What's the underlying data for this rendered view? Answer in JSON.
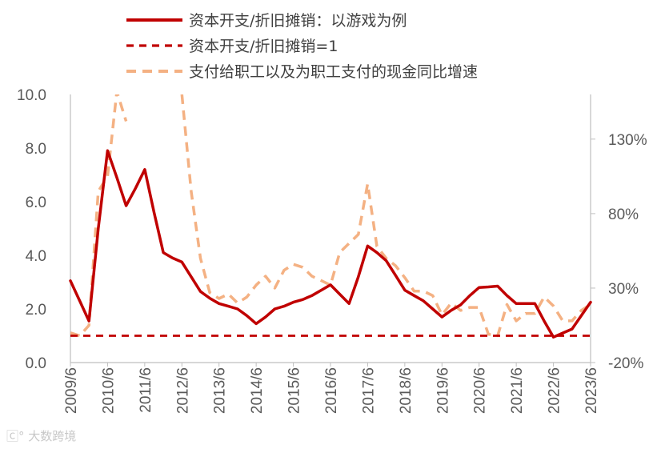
{
  "chart_data": {
    "type": "line",
    "x": [
      "2009/6",
      "2009/9",
      "2009/12",
      "2010/3",
      "2010/6",
      "2010/9",
      "2010/12",
      "2011/3",
      "2011/6",
      "2011/9",
      "2011/12",
      "2012/3",
      "2012/6",
      "2012/9",
      "2012/12",
      "2013/3",
      "2013/6",
      "2013/9",
      "2013/12",
      "2014/3",
      "2014/6",
      "2014/9",
      "2014/12",
      "2015/3",
      "2015/6",
      "2015/9",
      "2015/12",
      "2016/3",
      "2016/6",
      "2016/9",
      "2016/12",
      "2017/3",
      "2017/6",
      "2017/9",
      "2017/12",
      "2018/3",
      "2018/6",
      "2018/9",
      "2018/12",
      "2019/3",
      "2019/6",
      "2019/9",
      "2019/12",
      "2020/3",
      "2020/6",
      "2020/9",
      "2020/12",
      "2021/3",
      "2021/6",
      "2021/9",
      "2021/12",
      "2022/3",
      "2022/6",
      "2022/9",
      "2022/12",
      "2023/3",
      "2023/6"
    ],
    "x_tick_labels": [
      "2009/6",
      "2010/6",
      "2011/6",
      "2012/6",
      "2013/6",
      "2014/6",
      "2015/6",
      "2016/6",
      "2017/6",
      "2018/6",
      "2019/6",
      "2020/6",
      "2021/6",
      "2022/6",
      "2023/6"
    ],
    "series": [
      {
        "name": "资本开支/折旧摊销：以游戏为例",
        "axis": "left",
        "style": "solid",
        "color": "#c00000",
        "values": [
          3.05,
          2.3,
          1.55,
          5.0,
          7.9,
          6.9,
          5.85,
          6.5,
          7.2,
          5.6,
          4.1,
          3.9,
          3.75,
          3.2,
          2.65,
          2.4,
          2.2,
          2.1,
          2.0,
          1.75,
          1.45,
          1.7,
          2.0,
          2.1,
          2.25,
          2.35,
          2.5,
          2.7,
          2.9,
          2.55,
          2.2,
          3.2,
          4.35,
          4.1,
          3.8,
          3.25,
          2.7,
          2.5,
          2.3,
          2.0,
          1.7,
          1.95,
          2.15,
          2.5,
          2.8,
          2.82,
          2.85,
          2.5,
          2.2,
          2.2,
          2.2,
          1.55,
          0.95,
          1.1,
          1.25,
          1.75,
          2.25
        ]
      },
      {
        "name": "资本开支/折旧摊销=1",
        "axis": "left",
        "style": "dashed",
        "color": "#c00000",
        "values": [
          1,
          1,
          1,
          1,
          1,
          1,
          1,
          1,
          1,
          1,
          1,
          1,
          1,
          1,
          1,
          1,
          1,
          1,
          1,
          1,
          1,
          1,
          1,
          1,
          1,
          1,
          1,
          1,
          1,
          1,
          1,
          1,
          1,
          1,
          1,
          1,
          1,
          1,
          1,
          1,
          1,
          1,
          1,
          1,
          1,
          1,
          1,
          1,
          1,
          1,
          1,
          1,
          1,
          1,
          1,
          1,
          1
        ]
      },
      {
        "name": "支付给职工以及为职工支付的现金同比增速",
        "axis": "right",
        "style": "dashed",
        "color": "#f4b183",
        "values": [
          0,
          -2,
          5,
          95,
          105,
          162,
          142,
          null,
          null,
          null,
          null,
          null,
          160,
          95,
          50,
          27,
          23,
          26,
          20,
          24,
          32,
          38,
          30,
          42,
          46,
          44,
          38,
          35,
          32,
          54,
          60,
          66,
          100,
          58,
          50,
          45,
          37,
          28,
          28,
          25,
          12,
          20,
          15,
          17,
          17,
          -1,
          -2,
          19,
          8,
          13,
          13,
          24,
          18,
          8,
          8,
          15,
          19
        ]
      }
    ],
    "left_axis": {
      "min": 0,
      "max": 10,
      "ticks": [
        "0.0",
        "2.0",
        "4.0",
        "6.0",
        "8.0",
        "10.0"
      ]
    },
    "right_axis": {
      "min": -20,
      "max": 160,
      "ticks": [
        "-20%",
        "30%",
        "80%",
        "130%"
      ]
    },
    "legend_placement": "top",
    "grid": false
  },
  "watermark": "大数跨境"
}
